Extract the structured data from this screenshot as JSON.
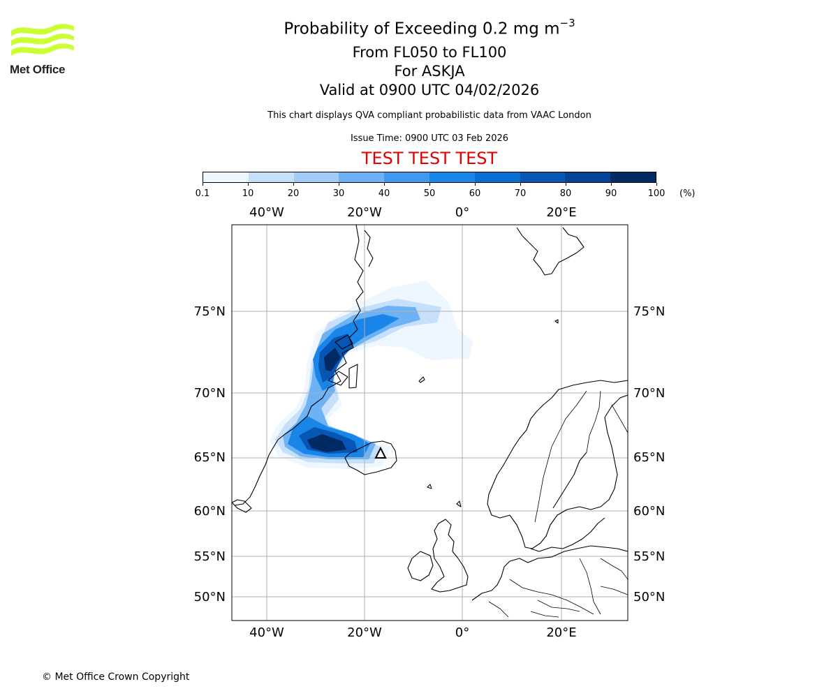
{
  "header": {
    "title_prefix": "Probability of Exceeding 0.2 mg m",
    "title_exponent": "−3",
    "flight_levels": "From FL050 to FL100",
    "volcano": "For ASKJA",
    "valid_time": "Valid at 0900 UTC 04/02/2026",
    "note": "This chart displays QVA compliant probabilistic data from VAAC London",
    "issue_time": "Issue Time: 0900 UTC 03 Feb 2026",
    "test_banner": "TEST TEST TEST"
  },
  "logo": {
    "text": "Met Office",
    "wave_color": "#ccff33"
  },
  "colorbar": {
    "ticks": [
      "0.1",
      "10",
      "20",
      "30",
      "40",
      "50",
      "60",
      "70",
      "80",
      "90",
      "100"
    ],
    "unit": "(%)",
    "colors": [
      "#eef6ff",
      "#c6e0fb",
      "#a3cbf8",
      "#6db2f4",
      "#3f99ee",
      "#1a85e8",
      "#0a6ed2",
      "#0756b3",
      "#054494",
      "#032b63"
    ]
  },
  "map": {
    "lon_labels": [
      "40°W",
      "20°W",
      "0°",
      "20°E"
    ],
    "lat_labels": [
      "75°N",
      "70°N",
      "65°N",
      "60°N",
      "55°N",
      "50°N"
    ],
    "volcano_marker_icon": "volcano-triangle-icon"
  },
  "footer": {
    "copyright": "© Met Office Crown Copyright"
  }
}
